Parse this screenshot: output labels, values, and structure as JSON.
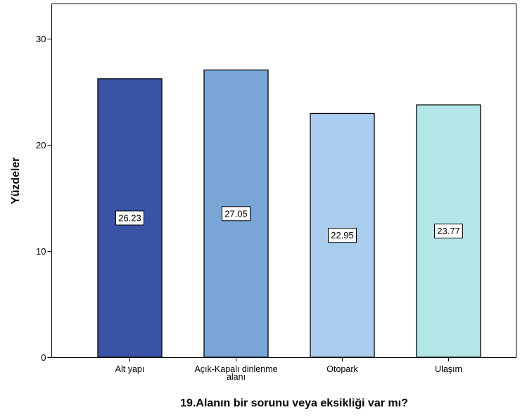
{
  "chart_data": {
    "type": "bar",
    "categories": [
      [
        "Alt yapı"
      ],
      [
        "Açık-Kapalı dinlenme",
        "alanı"
      ],
      [
        "Otopark"
      ],
      [
        "Ulaşım"
      ]
    ],
    "values": [
      26.23,
      27.05,
      22.95,
      23.77
    ],
    "data_labels": [
      "26.23",
      "27.05",
      "22.95",
      "23.77"
    ],
    "colors": [
      "#3B53A4",
      "#79A6D6",
      "#ABCDED",
      "#B3E6E6"
    ],
    "xlabel": "19.Alanın bir sorunu veya eksikliği var mı?",
    "ylabel": "Yüzdeler",
    "ylim": [
      0,
      33.3
    ],
    "yticks": [
      0,
      10,
      20,
      30
    ],
    "grid": false,
    "legend": "none"
  }
}
